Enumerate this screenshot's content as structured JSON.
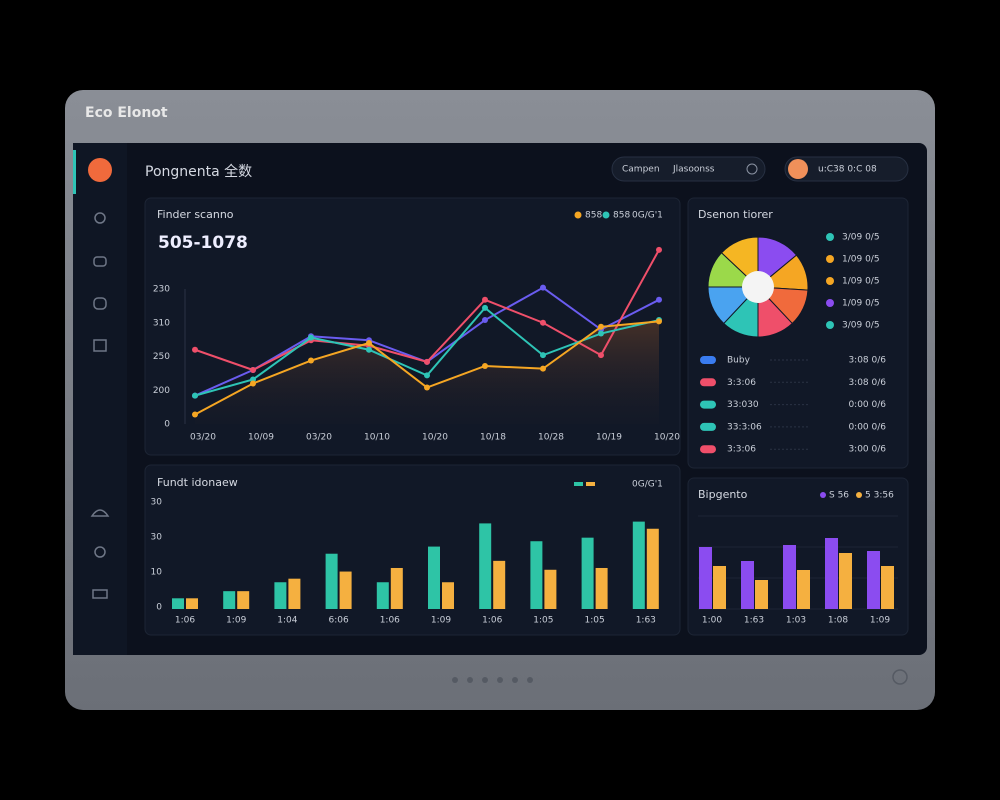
{
  "app_label": "Eco Elonot",
  "header": {
    "title": "Pongnenta 全数",
    "search": [
      "Campen",
      "Jlasoonss"
    ],
    "user": "u:C38 0:C 08"
  },
  "line_panel": {
    "title": "Finder scanno",
    "subtitle": "505-1078",
    "legend": [
      {
        "name": "858",
        "color": "#f5a623"
      },
      {
        "name": "858",
        "color": "#2ec4b6"
      }
    ],
    "legend_note": "0G/G'1",
    "y_labels": [
      "230",
      "310",
      "250",
      "200",
      "0"
    ],
    "x_labels": [
      "03/20",
      "10/09",
      "03/20",
      "10/10",
      "10/20",
      "10/18",
      "10/28",
      "10/19",
      "10/20"
    ],
    "ylim": [
      0,
      100
    ],
    "series": [
      {
        "name": "violet",
        "color": "#6a5cf0",
        "values": [
          21,
          40,
          65,
          62,
          46,
          77,
          101,
          70,
          92
        ]
      },
      {
        "name": "red",
        "color": "#ef4f6a",
        "values": [
          55,
          40,
          62,
          58,
          46,
          92,
          75,
          51,
          129
        ]
      },
      {
        "name": "teal",
        "color": "#2ec4b6",
        "values": [
          21,
          33,
          64,
          55,
          36,
          86,
          51,
          67,
          77
        ]
      },
      {
        "name": "orange",
        "color": "#f5a623",
        "values": [
          7,
          30,
          47,
          60,
          27,
          43,
          41,
          72,
          76
        ]
      }
    ]
  },
  "pie_panel": {
    "title": "Dsenon tiorer",
    "values": [
      14,
      12,
      12,
      12,
      12,
      13,
      12,
      13
    ],
    "colors": [
      "#8b4cf0",
      "#f5a623",
      "#f06a3c",
      "#ef4f6a",
      "#2ec4b6",
      "#4aa3f0",
      "#9bd94a",
      "#f5b623"
    ],
    "legend": [
      {
        "name": "3/09 0/5",
        "color": "#2ec4b6"
      },
      {
        "name": "1/09 0/5",
        "color": "#f5a623"
      },
      {
        "name": "1/09 0/5",
        "color": "#f5a623"
      },
      {
        "name": "1/09 0/5",
        "color": "#8b4cf0"
      },
      {
        "name": "3/09 0/5",
        "color": "#2ec4b6"
      }
    ],
    "rows": [
      {
        "name": "Buby",
        "value": "3:08 0/6",
        "color": "#3a7cf0"
      },
      {
        "name": "3:3:06",
        "value": "3:08 0/6",
        "color": "#ef4f6a"
      },
      {
        "name": "33:030",
        "value": "0:00 0/6",
        "color": "#2ec4b6"
      },
      {
        "name": "33:3:06",
        "value": "0:00 0/6",
        "color": "#2ec4b6"
      },
      {
        "name": "3:3:06",
        "value": "3:00 0/6",
        "color": "#ef4f6a"
      }
    ]
  },
  "bar_panel": {
    "title": "Fundt idonaew",
    "legend_note": "0G/G'1",
    "y_labels": [
      "30",
      "30",
      "10",
      "0"
    ],
    "x_labels": [
      "1:06",
      "1:09",
      "1:04",
      "6:06",
      "1:06",
      "1:09",
      "1:06",
      "1:05",
      "1:05",
      "1:63"
    ],
    "ylim": [
      0,
      30
    ],
    "series": [
      {
        "name": "teal",
        "color": "#2ec4a6",
        "values": [
          3,
          5,
          7.5,
          15.5,
          7.5,
          17.5,
          24,
          19,
          20,
          24.5
        ]
      },
      {
        "name": "orange",
        "color": "#f5b040",
        "values": [
          3,
          5,
          8.5,
          10.5,
          11.5,
          7.5,
          13.5,
          11,
          11.5,
          22.5
        ]
      }
    ]
  },
  "mini_bar_panel": {
    "title": "Bipgento",
    "legend": [
      "S 56",
      "5 3:56"
    ],
    "x_labels": [
      "1:00",
      "1:63",
      "1:03",
      "1:08",
      "1:09"
    ],
    "ylim": [
      0,
      100
    ],
    "series": [
      {
        "name": "purple",
        "color": "#8b4cf0",
        "values": [
          62,
          48,
          64,
          71,
          58
        ]
      },
      {
        "name": "orange",
        "color": "#f5b040",
        "values": [
          43,
          29,
          39,
          56,
          43
        ]
      }
    ]
  }
}
